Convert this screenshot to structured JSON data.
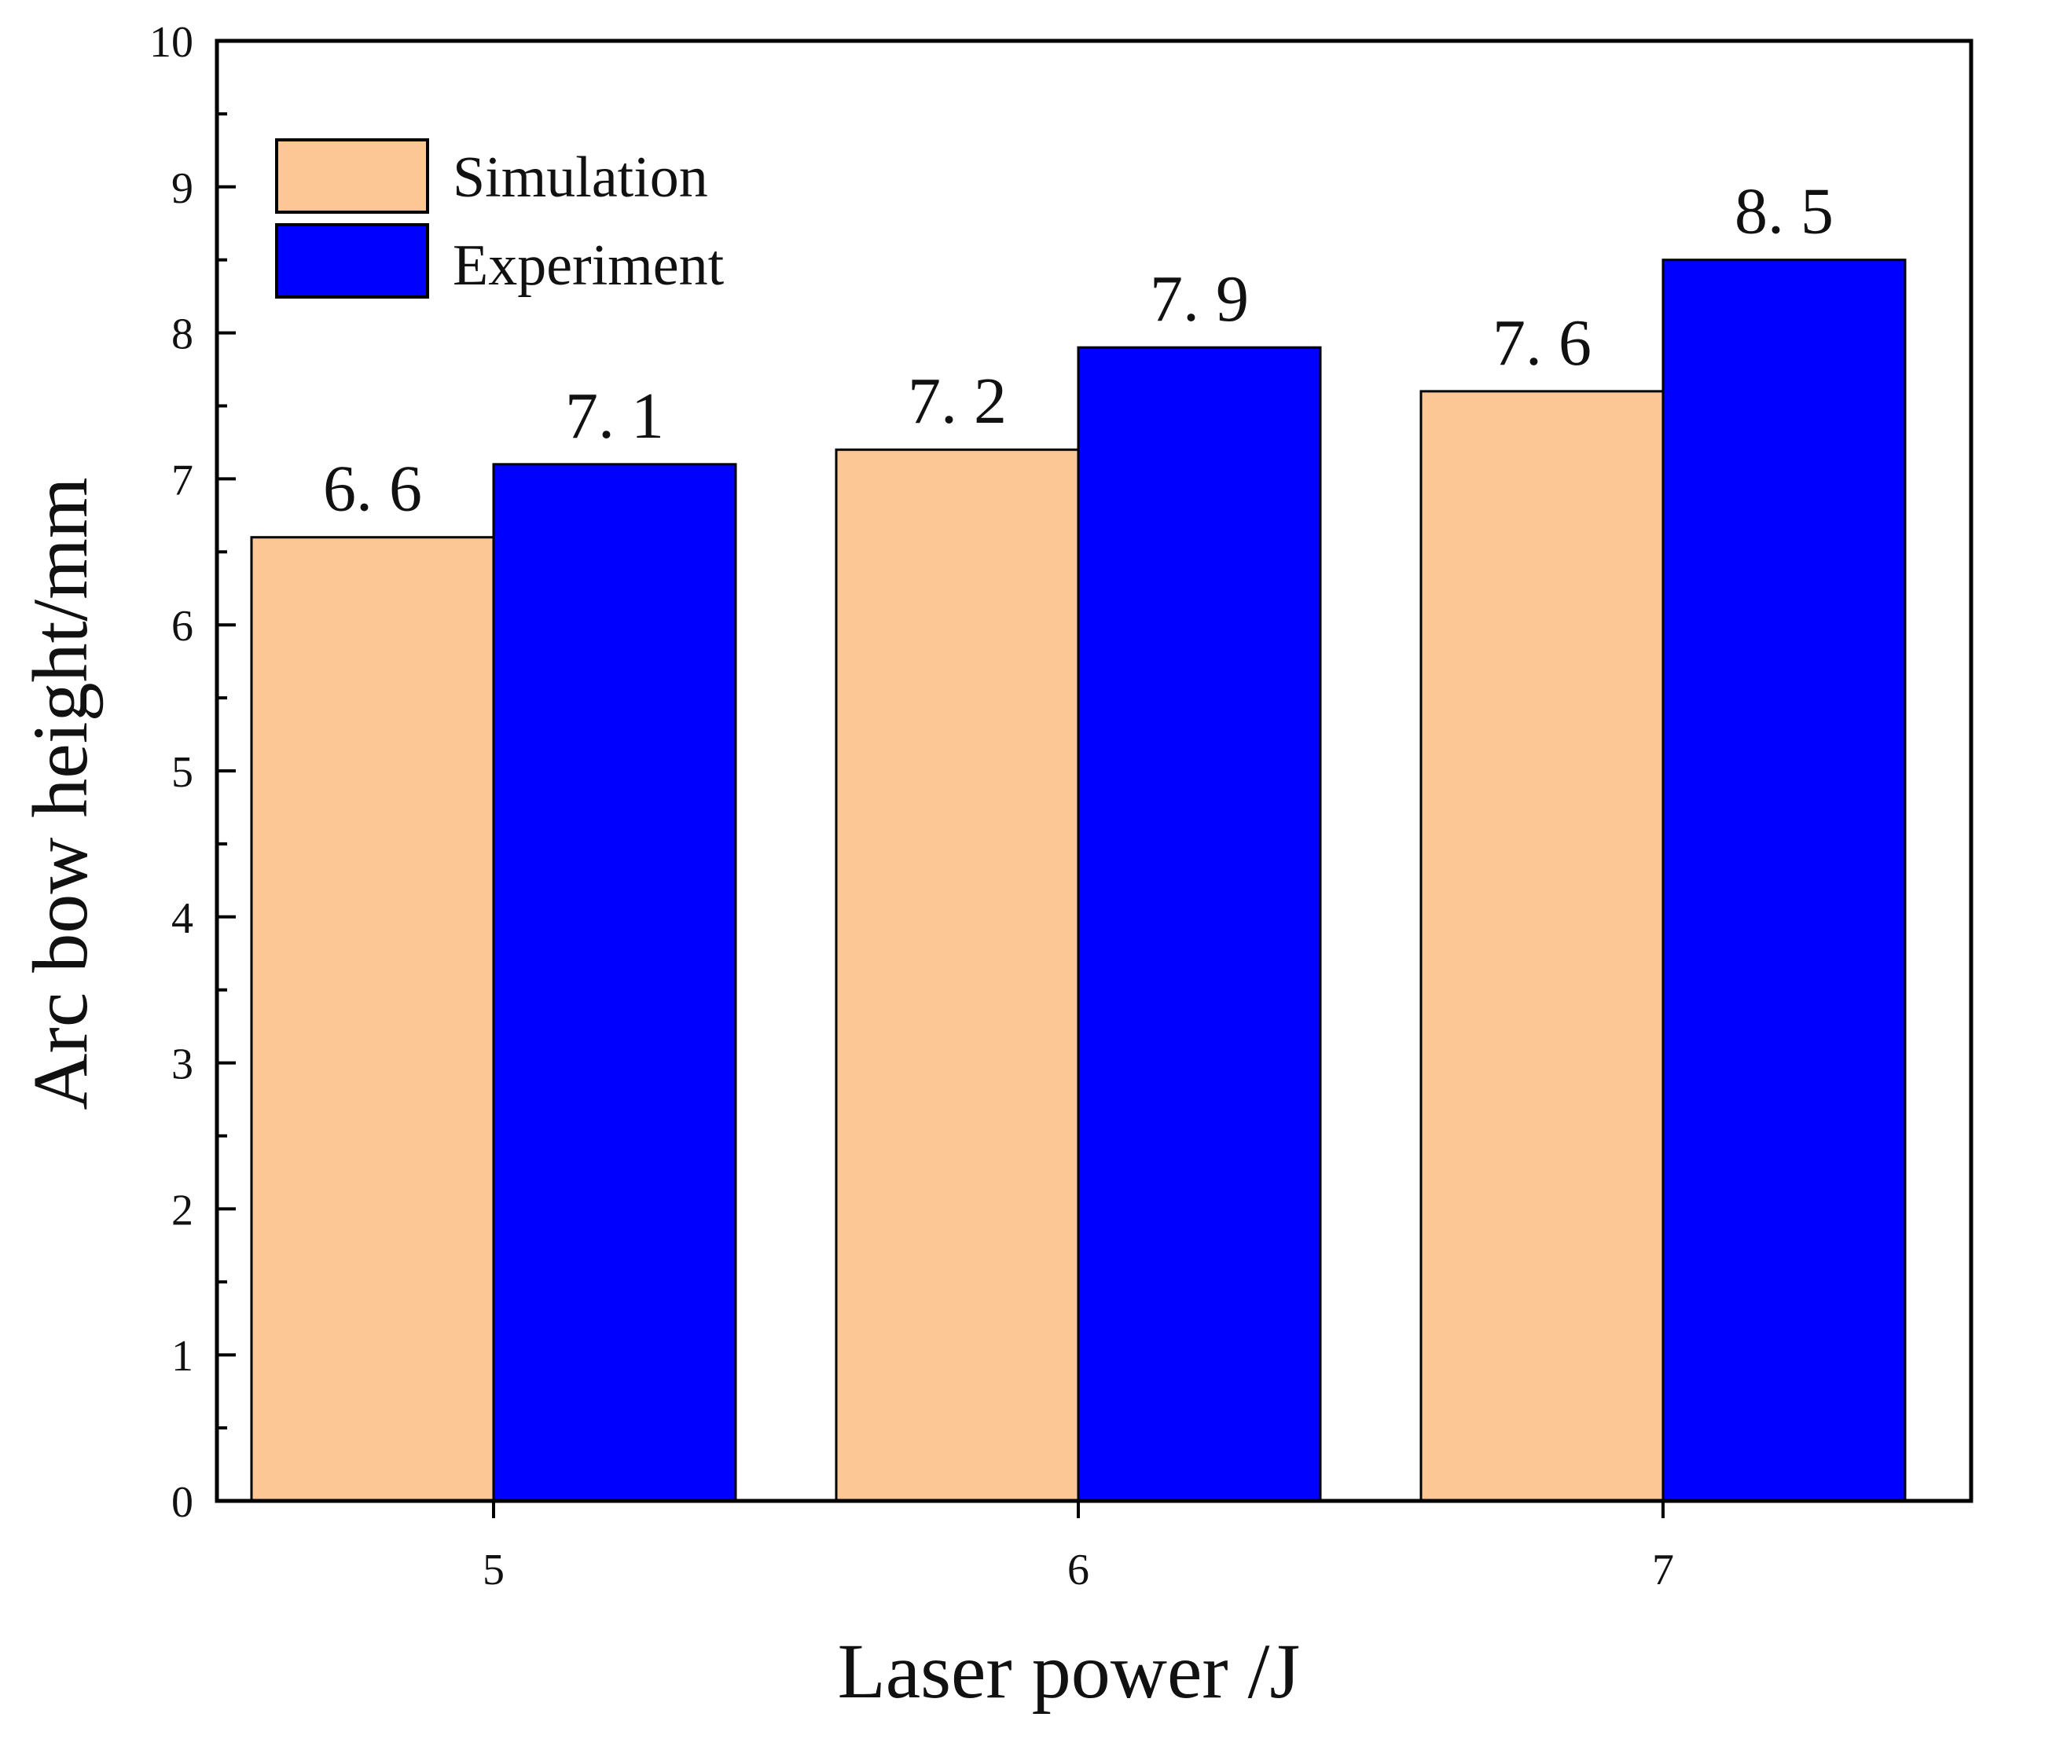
{
  "chart_data": {
    "type": "bar",
    "title": "",
    "xlabel": "Laser power /J",
    "ylabel": "Arc bow height/mm",
    "categories": [
      "5",
      "6",
      "7"
    ],
    "ylim": [
      0,
      10
    ],
    "yticks": [
      0,
      1,
      2,
      3,
      4,
      5,
      6,
      7,
      8,
      9,
      10
    ],
    "grid": false,
    "legend_position": "top-left",
    "series": [
      {
        "name": "Simulation",
        "color": "#FCC794",
        "values": [
          6.6,
          7.2,
          7.6
        ],
        "labels": [
          "6. 6",
          "7. 2",
          "7. 6"
        ]
      },
      {
        "name": "Experiment",
        "color": "#0000FF",
        "values": [
          7.1,
          7.9,
          8.5
        ],
        "labels": [
          "7. 1",
          "7. 9",
          "8. 5"
        ]
      }
    ]
  }
}
